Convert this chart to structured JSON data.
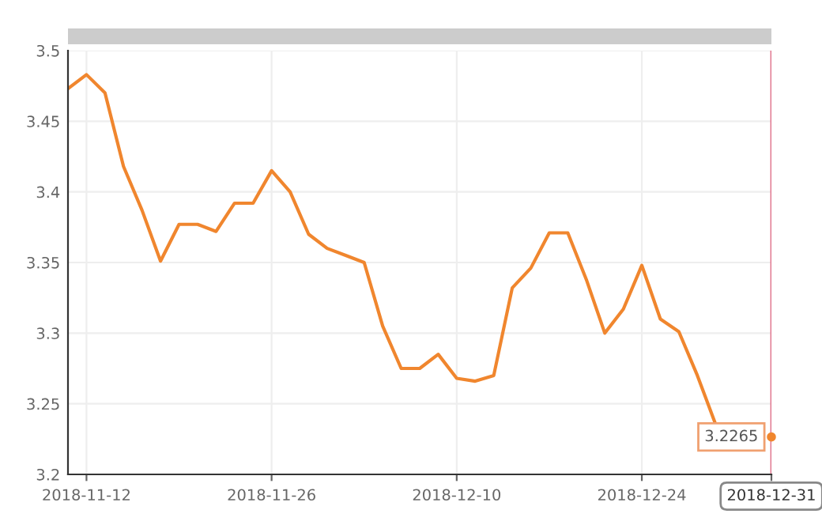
{
  "chart_data": {
    "type": "line",
    "categories": [
      null,
      "2018-11-12",
      null,
      null,
      null,
      null,
      null,
      null,
      null,
      null,
      null,
      "2018-11-26",
      null,
      null,
      null,
      null,
      null,
      null,
      null,
      null,
      null,
      "2018-12-10",
      null,
      null,
      null,
      null,
      null,
      null,
      null,
      null,
      null,
      "2018-12-24",
      null,
      null,
      null,
      null,
      null,
      null,
      "2018-12-31"
    ],
    "series": [
      {
        "color": "#f0862e",
        "values": [
          3.473,
          3.483,
          3.47,
          3.418,
          3.387,
          3.351,
          3.377,
          3.377,
          3.372,
          3.392,
          3.392,
          3.415,
          3.4,
          3.37,
          3.36,
          3.355,
          3.35,
          3.305,
          3.275,
          3.275,
          3.285,
          3.268,
          3.266,
          3.27,
          3.332,
          3.346,
          3.371,
          3.371,
          3.338,
          3.3,
          3.317,
          3.348,
          3.31,
          3.301,
          3.27,
          3.235,
          null,
          null,
          3.2265
        ]
      }
    ],
    "ylim": [
      3.2,
      3.5
    ],
    "yticks": [
      3.2,
      3.25,
      3.3,
      3.35,
      3.4,
      3.45,
      3.5
    ],
    "grid": true,
    "marker": "none",
    "line_style": "solid",
    "ref_lines": [
      {
        "axis": "x",
        "value": "2018-12-31",
        "color": "#e0708a"
      }
    ],
    "annotations": [
      {
        "text": "3.2265",
        "x": "2018-12-31",
        "y": 3.2265
      }
    ]
  }
}
